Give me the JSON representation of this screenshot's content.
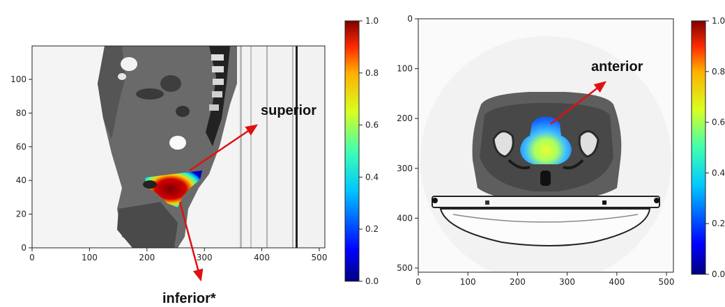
{
  "panels": [
    {
      "view": "sagittal",
      "x_ticks": [
        "0",
        "100",
        "200",
        "300",
        "400",
        "500"
      ],
      "y_ticks": [
        "0",
        "20",
        "40",
        "60",
        "80",
        "100"
      ],
      "annotations": [
        {
          "label": "superior"
        },
        {
          "label": "inferior*"
        }
      ]
    },
    {
      "view": "axial",
      "x_ticks": [
        "0",
        "100",
        "200",
        "300",
        "400",
        "500"
      ],
      "y_ticks": [
        "0",
        "100",
        "200",
        "300",
        "400",
        "500"
      ],
      "annotations": [
        {
          "label": "anterior"
        }
      ]
    }
  ],
  "colorbar": {
    "ticks": [
      "0.0",
      "0.2",
      "0.4",
      "0.6",
      "0.8",
      "1.0"
    ],
    "colormap": "jet",
    "range": [
      0,
      1
    ]
  },
  "colors": {
    "arrow": "#e01010",
    "heat_high": "#8b0000",
    "heat_low": "#00008b"
  }
}
